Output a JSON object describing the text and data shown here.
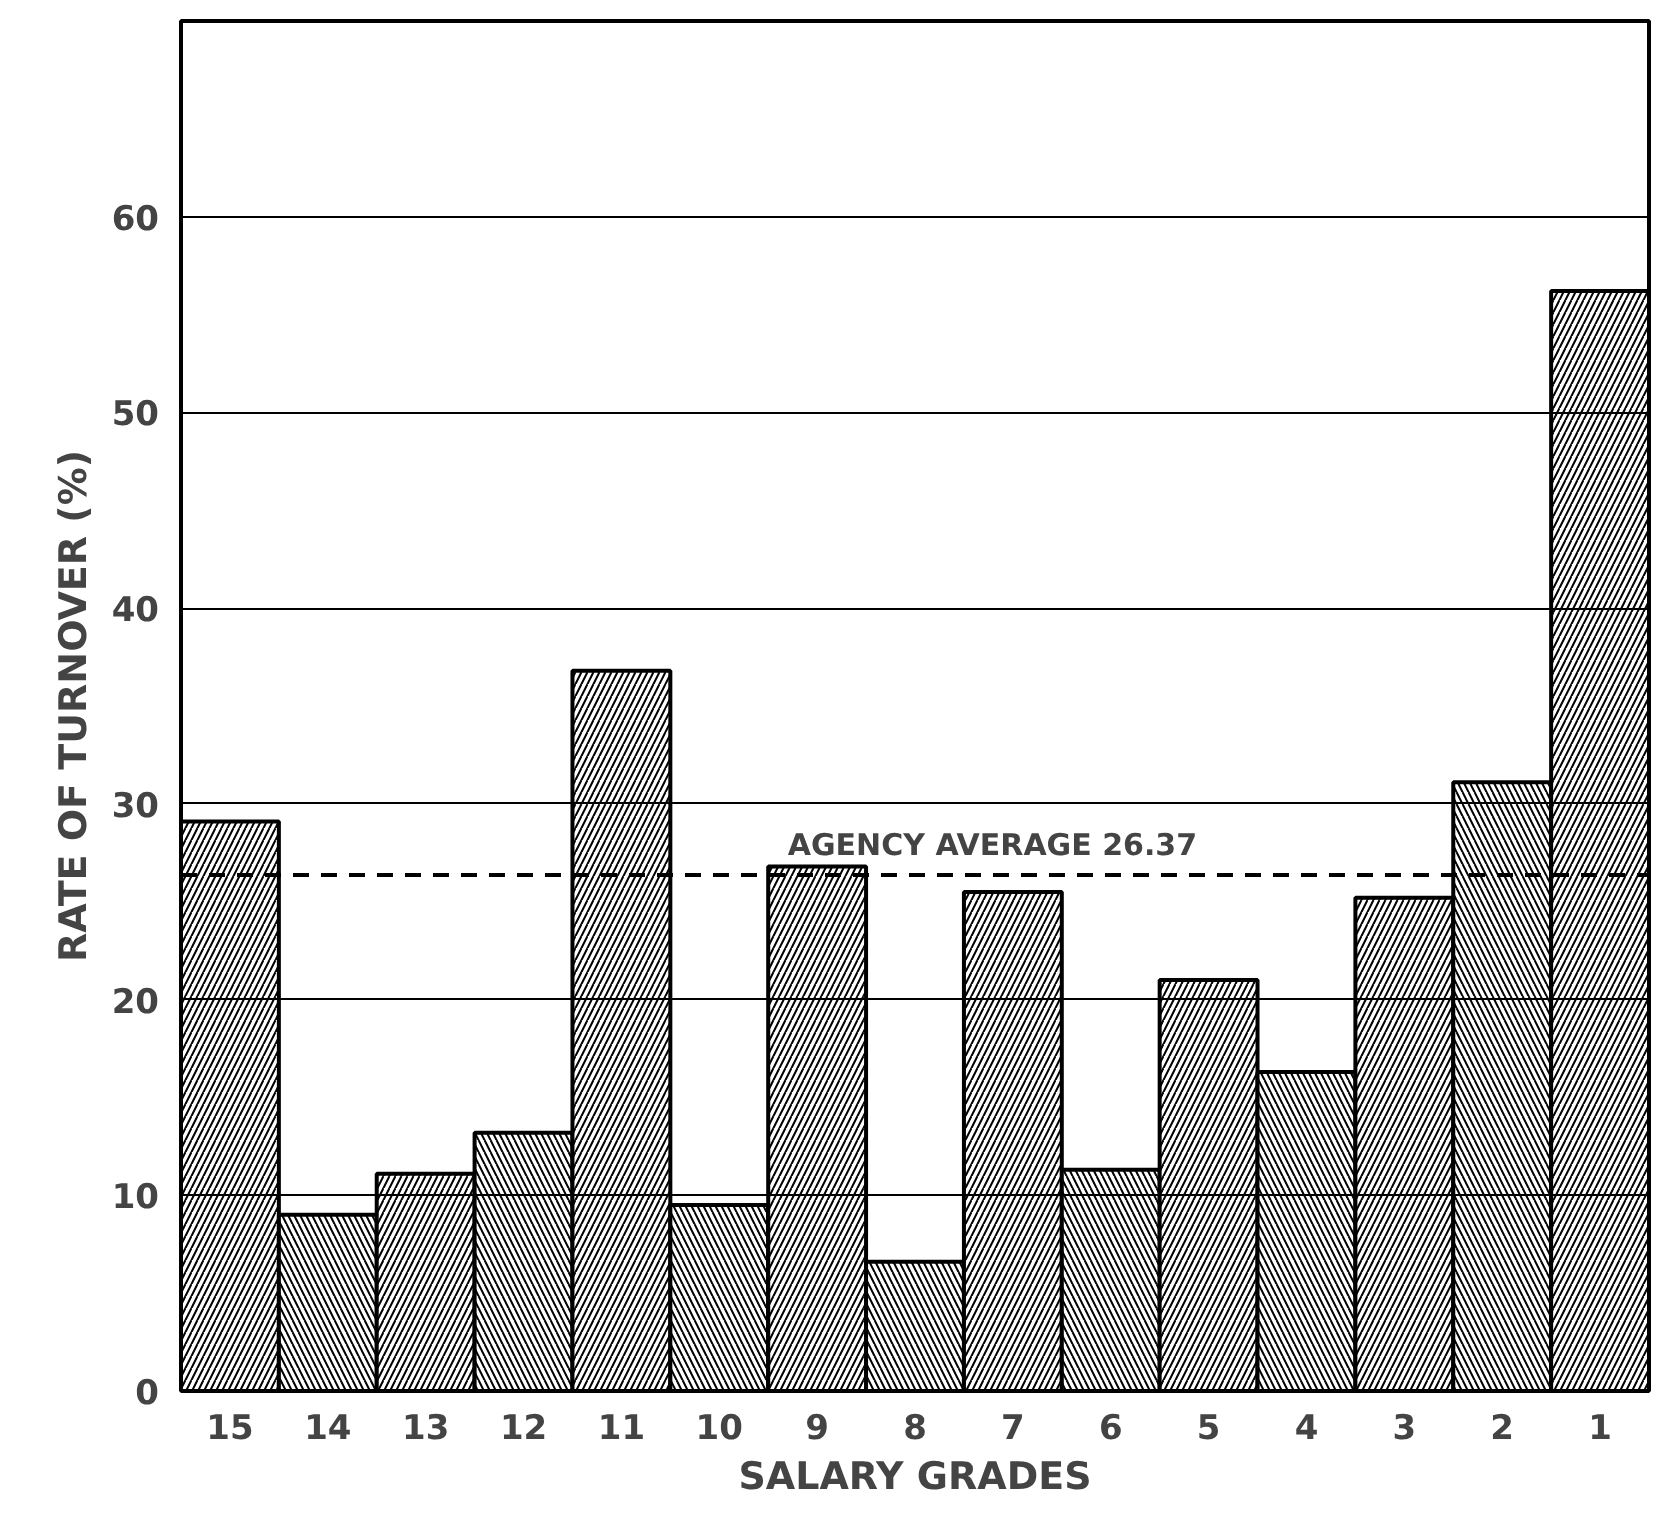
{
  "chart_data": {
    "type": "bar",
    "xlabel": "SALARY GRADES",
    "ylabel": "RATE OF TURNOVER (%)",
    "categories": [
      "15",
      "14",
      "13",
      "12",
      "11",
      "10",
      "9",
      "8",
      "7",
      "6",
      "5",
      "4",
      "3",
      "2",
      "1"
    ],
    "values": [
      29.1,
      9.0,
      11.1,
      13.2,
      36.8,
      9.5,
      26.8,
      6.6,
      25.5,
      11.3,
      21.0,
      16.3,
      25.2,
      31.1,
      56.2
    ],
    "color": "#000000",
    "ylim": [
      0,
      70
    ],
    "yticks": [
      0,
      10,
      20,
      30,
      40,
      50,
      60
    ],
    "grid": "y",
    "ref_lines": [
      {
        "axis": "y",
        "value": 26.37,
        "label": "AGENCY AVERAGE 26.37",
        "line_style": "dashed",
        "color": "#000000"
      }
    ]
  }
}
